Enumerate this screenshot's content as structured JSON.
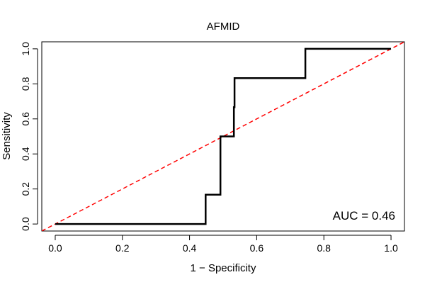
{
  "chart_data": {
    "type": "line",
    "title": "AFMID",
    "xlabel": "1 − Specificity",
    "ylabel": "Sensitivity",
    "xlim": [
      -0.04,
      1.04
    ],
    "ylim": [
      -0.04,
      1.04
    ],
    "x_ticks": [
      0.0,
      0.2,
      0.4,
      0.6,
      0.8,
      1.0
    ],
    "x_tick_labels": [
      "0.0",
      "0.2",
      "0.4",
      "0.6",
      "0.8",
      "1.0"
    ],
    "y_ticks": [
      0.0,
      0.2,
      0.4,
      0.6,
      0.8,
      1.0
    ],
    "y_tick_labels": [
      "0.0",
      "0.2",
      "0.4",
      "0.6",
      "0.8",
      "1.0"
    ],
    "annotation": "AUC = 0.46",
    "series": [
      {
        "name": "ROC curve",
        "color": "#000000",
        "style": "solid",
        "x": [
          0.0,
          0.448,
          0.448,
          0.492,
          0.492,
          0.532,
          0.532,
          0.534,
          0.534,
          0.745,
          0.745,
          1.0
        ],
        "y": [
          0.0,
          0.0,
          0.167,
          0.167,
          0.5,
          0.5,
          0.667,
          0.667,
          0.833,
          0.833,
          1.0,
          1.0
        ]
      },
      {
        "name": "reference diagonal",
        "color": "#ff0000",
        "style": "dashed",
        "x": [
          -0.04,
          1.04
        ],
        "y": [
          -0.04,
          1.04
        ]
      }
    ]
  }
}
